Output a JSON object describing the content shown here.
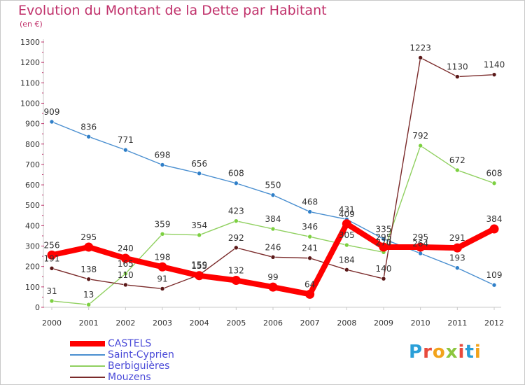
{
  "title": "Evolution du Montant de la Dette par Habitant",
  "unit_label": "(en €)",
  "brand": {
    "text": "Proxiti",
    "colors": [
      "#2a9fd8",
      "#e84a3c",
      "#f2a31b",
      "#8cc63f",
      "#e84a3c",
      "#2a9fd8",
      "#f2a31b"
    ]
  },
  "chart_data": {
    "type": "line",
    "x": [
      2000,
      2001,
      2002,
      2003,
      2004,
      2005,
      2006,
      2007,
      2008,
      2009,
      2010,
      2011,
      2012
    ],
    "ylim": [
      0,
      1300
    ],
    "yticks": [
      0,
      100,
      200,
      300,
      400,
      500,
      600,
      700,
      800,
      900,
      1000,
      1100,
      1200,
      1300
    ],
    "grid": false,
    "legend_position": "bottom-left",
    "series": [
      {
        "name": "Saint-Cyprien",
        "color": "#4a8fd0",
        "marker": "#2f7fc8",
        "emphasis": false,
        "values": [
          909,
          836,
          771,
          698,
          656,
          608,
          550,
          468,
          431,
          335,
          264,
          193,
          109
        ],
        "labels": [
          "909",
          "836",
          "771",
          "698",
          "656",
          "608",
          "550",
          "468",
          "431",
          "335",
          "264",
          "193",
          "109"
        ]
      },
      {
        "name": "Berbiguières",
        "color": "#90d060",
        "marker": "#7cd040",
        "emphasis": false,
        "values": [
          31,
          13,
          165,
          359,
          354,
          423,
          384,
          346,
          305,
          270,
          792,
          672,
          608
        ],
        "labels": [
          "31",
          "13",
          "165",
          "359",
          "354",
          "423",
          "384",
          "346",
          "305",
          "270",
          "792",
          "672",
          "608"
        ]
      },
      {
        "name": "Mouzens",
        "color": "#7a2a2a",
        "marker": "#5a1818",
        "emphasis": false,
        "values": [
          191,
          138,
          110,
          91,
          159,
          292,
          246,
          241,
          184,
          140,
          1223,
          1130,
          1140
        ],
        "labels": [
          "191",
          "138",
          "110",
          "91",
          "159",
          "292",
          "246",
          "241",
          "184",
          "140",
          "1223",
          "1130",
          "1140"
        ]
      },
      {
        "name": "CASTELS",
        "color": "#ff0000",
        "marker": "#ff0000",
        "emphasis": true,
        "values": [
          256,
          295,
          240,
          198,
          155,
          132,
          99,
          64,
          409,
          295,
          295,
          291,
          384
        ],
        "labels": [
          "256",
          "295",
          "240",
          "198",
          "155",
          "132",
          "99",
          "64",
          "409",
          "295",
          "295",
          "291",
          "384"
        ]
      }
    ],
    "legend": [
      "CASTELS",
      "Saint-Cyprien",
      "Berbiguières",
      "Mouzens"
    ]
  }
}
